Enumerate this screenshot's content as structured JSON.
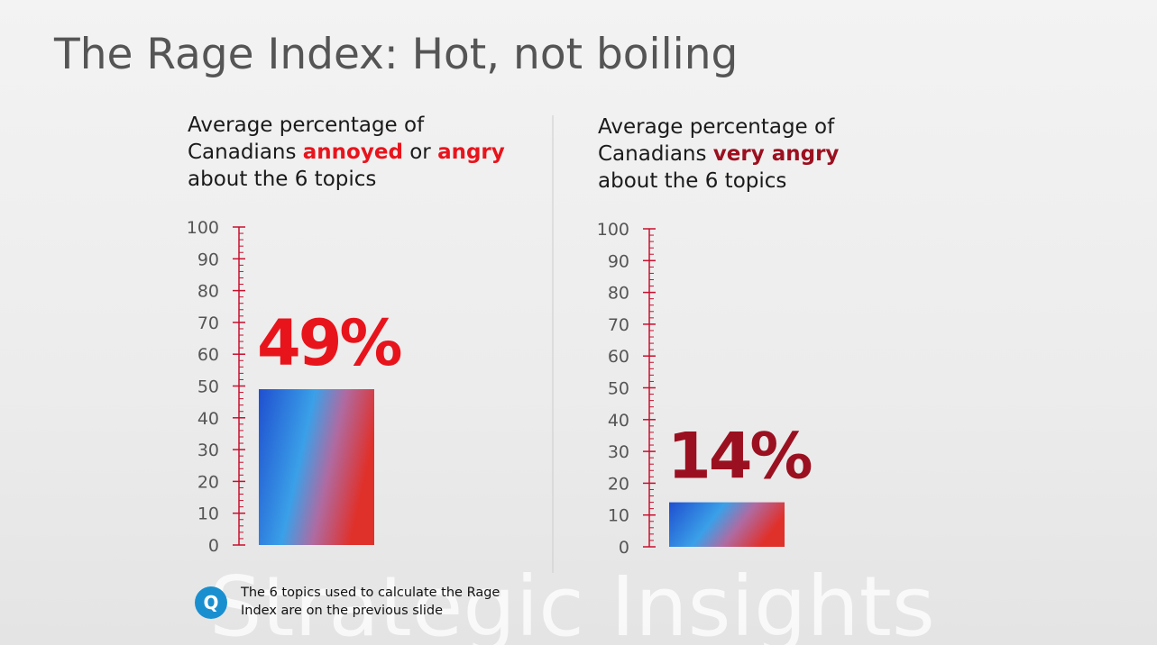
{
  "title": "The Rage Index: Hot, not boiling",
  "chart_data": [
    {
      "type": "bar",
      "subtitle": [
        {
          "text": "Average percentage of\nCanadians "
        },
        {
          "text": "annoyed",
          "color": "#e8141c",
          "bold": true
        },
        {
          "text": " or "
        },
        {
          "text": "angry",
          "color": "#e8141c",
          "bold": true
        },
        {
          "text": "\nabout the 6 topics"
        }
      ],
      "values": [
        49
      ],
      "value_labels": [
        "49%"
      ],
      "color": "#e8141c",
      "ylim": [
        0,
        100
      ],
      "yticks": [
        0,
        10,
        20,
        30,
        40,
        50,
        60,
        70,
        80,
        90,
        100
      ],
      "minor_yticks": [
        0,
        2,
        4,
        6,
        8,
        10,
        12,
        14,
        16,
        18,
        20,
        22,
        24,
        26,
        28,
        30,
        32,
        34,
        36,
        38,
        40,
        42,
        44,
        46,
        48,
        50,
        52,
        54,
        56,
        58,
        60,
        62,
        64,
        66,
        68,
        70,
        72,
        74,
        76,
        78,
        80,
        82,
        84,
        86,
        88,
        90,
        92,
        94,
        96,
        98,
        100
      ]
    },
    {
      "type": "bar",
      "subtitle": [
        {
          "text": "Average percentage of\nCanadians "
        },
        {
          "text": "very angry",
          "color": "#9b1020",
          "bold": true
        },
        {
          "text": "\nabout the 6 topics"
        }
      ],
      "values": [
        14
      ],
      "value_labels": [
        "14%"
      ],
      "color": "#9b1020",
      "ylim": [
        0,
        100
      ],
      "yticks": [
        0,
        10,
        20,
        30,
        40,
        50,
        60,
        70,
        80,
        90,
        100
      ],
      "minor_yticks": [
        0,
        2,
        4,
        6,
        8,
        10,
        12,
        14,
        16,
        18,
        20,
        22,
        24,
        26,
        28,
        30,
        32,
        34,
        36,
        38,
        40,
        42,
        44,
        46,
        48,
        50,
        52,
        54,
        56,
        58,
        60,
        62,
        64,
        66,
        68,
        70,
        72,
        74,
        76,
        78,
        80,
        82,
        84,
        86,
        88,
        90,
        92,
        94,
        96,
        98,
        100
      ]
    }
  ],
  "footnote": {
    "icon": "Q",
    "text": "The 6 topics used to calculate the Rage\nIndex are on the previous slide"
  },
  "watermark": "Strategic Insights"
}
